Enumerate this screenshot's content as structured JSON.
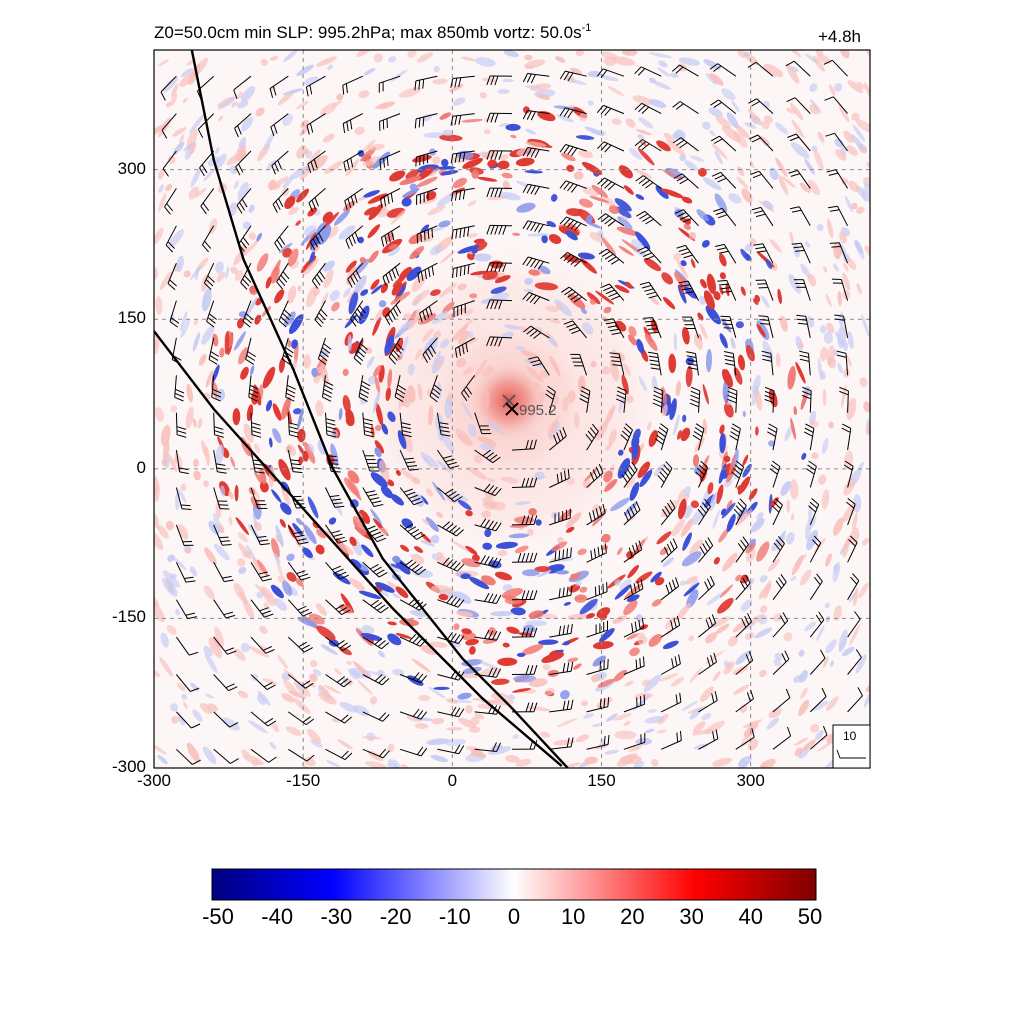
{
  "chart_data": {
    "type": "heatmap",
    "title": "Z0=50.0cm  min SLP: 995.2hPa; max 850mb vortz:  50.0s",
    "title_superscript": "-1",
    "time_label": "+4.8h",
    "xlim": [
      -300,
      420
    ],
    "ylim": [
      -300,
      420
    ],
    "x_ticks": [
      "-300",
      "-150",
      "0",
      "150",
      "300"
    ],
    "y_ticks": [
      "300",
      "150",
      "0",
      "-150",
      "-300"
    ],
    "x_tick_values": [
      -300,
      -150,
      0,
      150,
      300
    ],
    "y_tick_values": [
      300,
      150,
      0,
      -150,
      -300
    ],
    "grid": true,
    "field": "850mb vertical vorticity",
    "field_max": 50.0,
    "min_slp": {
      "label": "995.2",
      "value_hPa": 995.2,
      "x": 60,
      "y": 60
    },
    "vortex_center": {
      "x": 57,
      "y": 68
    },
    "colorbar": {
      "range": [
        -50,
        50
      ],
      "ticks": [
        "-50",
        "-40",
        "-30",
        "-20",
        "-10",
        "0",
        "10",
        "20",
        "30",
        "40",
        "50"
      ],
      "colors": [
        "#00007f",
        "#0000ff",
        "#ffffff",
        "#ff0000",
        "#7f0000"
      ]
    },
    "boundary_lines": [
      {
        "points": [
          [
            -262,
            420
          ],
          [
            -240,
            310
          ],
          [
            -210,
            210
          ],
          [
            -160,
            100
          ],
          [
            -120,
            0
          ],
          [
            -70,
            -90
          ],
          [
            10,
            -190
          ],
          [
            60,
            -240
          ],
          [
            116,
            -300
          ]
        ]
      },
      {
        "points": [
          [
            -300,
            138
          ],
          [
            -240,
            60
          ],
          [
            -150,
            -40
          ],
          [
            -60,
            -140
          ],
          [
            30,
            -230
          ],
          [
            110,
            -298
          ]
        ]
      }
    ],
    "wind_barbs": {
      "spacing": 37.5,
      "reference_speed_label": "10"
    }
  }
}
